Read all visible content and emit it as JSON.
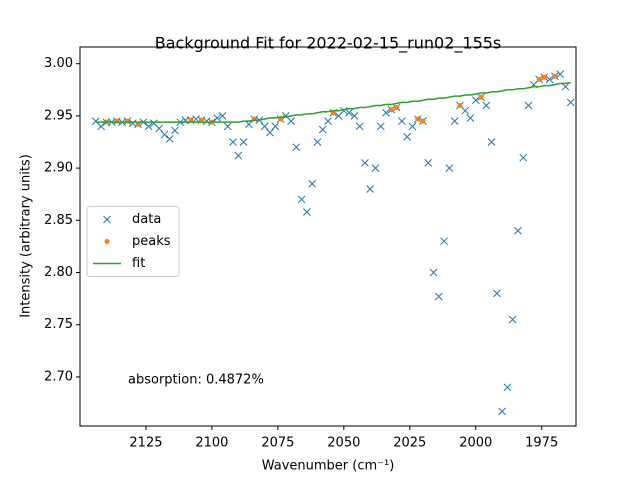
{
  "chart_data": {
    "type": "scatter-fit",
    "title": "Background Fit for 2022-02-15_run02_155s",
    "xlabel": "Wavenumber (cm⁻¹)",
    "ylabel": "Intensity (arbitrary units)",
    "annotation": "absorption: 0.4872%",
    "legend": "center left",
    "xlim": [
      2150,
      1962
    ],
    "ylim": [
      2.653,
      3.016
    ],
    "xticks": [
      2125,
      2100,
      2075,
      2050,
      2025,
      2000,
      1975
    ],
    "yticks": [
      {
        "value": 2.7,
        "label": "2.70"
      },
      {
        "value": 2.75,
        "label": "2.75"
      },
      {
        "value": 2.8,
        "label": "2.80"
      },
      {
        "value": 2.85,
        "label": "2.85"
      },
      {
        "value": 2.9,
        "label": "2.90"
      },
      {
        "value": 2.95,
        "label": "2.95"
      },
      {
        "value": 3.0,
        "label": "3.00"
      }
    ],
    "x": [
      2144,
      2142,
      2140,
      2138,
      2136,
      2134,
      2132,
      2130,
      2128,
      2126,
      2124,
      2122,
      2120,
      2118,
      2116,
      2114,
      2112,
      2110,
      2108,
      2106,
      2104,
      2102,
      2100,
      2098,
      2096,
      2094,
      2092,
      2090,
      2088,
      2086,
      2084,
      2082,
      2080,
      2078,
      2076,
      2074,
      2072,
      2070,
      2068,
      2066,
      2064,
      2062,
      2060,
      2058,
      2056,
      2054,
      2052,
      2050,
      2048,
      2046,
      2044,
      2042,
      2040,
      2038,
      2036,
      2034,
      2032,
      2030,
      2028,
      2026,
      2024,
      2022,
      2020,
      2018,
      2016,
      2014,
      2012,
      2010,
      2008,
      2006,
      2004,
      2002,
      2000,
      1998,
      1996,
      1994,
      1992,
      1990,
      1988,
      1986,
      1984,
      1982,
      1980,
      1978,
      1976,
      1974,
      1972,
      1970,
      1968,
      1966,
      1964
    ],
    "series": [
      {
        "name": "data",
        "marker": "x",
        "color": "#1f77b4",
        "values": [
          2.945,
          2.94,
          2.944,
          2.944,
          2.945,
          2.944,
          2.945,
          2.943,
          2.942,
          2.944,
          2.94,
          2.943,
          2.938,
          2.932,
          2.928,
          2.936,
          2.944,
          2.946,
          2.946,
          2.947,
          2.946,
          2.945,
          2.944,
          2.948,
          2.95,
          2.94,
          2.925,
          2.912,
          2.925,
          2.942,
          2.947,
          2.946,
          2.94,
          2.934,
          2.94,
          2.947,
          2.95,
          2.945,
          2.92,
          2.87,
          2.858,
          2.885,
          2.925,
          2.937,
          2.945,
          2.953,
          2.95,
          2.955,
          2.953,
          2.95,
          2.94,
          2.905,
          2.88,
          2.9,
          2.94,
          2.953,
          2.956,
          2.958,
          2.945,
          2.93,
          2.94,
          2.947,
          2.945,
          2.905,
          2.8,
          2.777,
          2.83,
          2.9,
          2.945,
          2.96,
          2.955,
          2.948,
          2.965,
          2.968,
          2.96,
          2.925,
          2.78,
          2.667,
          2.69,
          2.755,
          2.84,
          2.91,
          2.96,
          2.98,
          2.985,
          2.987,
          2.985,
          2.988,
          2.99,
          2.978,
          2.963
        ]
      },
      {
        "name": "peaks",
        "marker": "dot",
        "color": "#ff7f0e",
        "values": [
          null,
          null,
          2.944,
          null,
          2.945,
          null,
          2.945,
          null,
          2.942,
          null,
          null,
          null,
          null,
          null,
          null,
          null,
          null,
          null,
          2.946,
          null,
          2.946,
          null,
          2.944,
          null,
          null,
          null,
          null,
          null,
          null,
          null,
          2.947,
          null,
          null,
          null,
          null,
          2.947,
          null,
          null,
          null,
          null,
          null,
          null,
          null,
          null,
          null,
          2.953,
          null,
          null,
          null,
          null,
          null,
          null,
          null,
          null,
          null,
          null,
          2.956,
          2.958,
          null,
          null,
          null,
          2.947,
          2.945,
          null,
          null,
          null,
          null,
          null,
          null,
          2.96,
          null,
          null,
          null,
          2.968,
          null,
          null,
          null,
          null,
          null,
          null,
          null,
          null,
          null,
          null,
          2.985,
          2.987,
          null,
          2.988,
          null,
          null,
          null
        ]
      },
      {
        "name": "fit",
        "marker": "line",
        "color": "#2ca02c",
        "values": [
          2.944,
          2.944,
          2.944,
          2.944,
          2.944,
          2.944,
          2.944,
          2.944,
          2.944,
          2.944,
          2.944,
          2.944,
          2.944,
          2.944,
          2.944,
          2.944,
          2.944,
          2.944,
          2.944,
          2.944,
          2.944,
          2.944,
          2.944,
          2.944,
          2.944,
          2.944,
          2.944,
          2.944,
          2.945,
          2.945,
          2.946,
          2.946,
          2.947,
          2.948,
          2.948,
          2.949,
          2.949,
          2.95,
          2.951,
          2.951,
          2.952,
          2.952,
          2.953,
          2.954,
          2.954,
          2.955,
          2.955,
          2.956,
          2.957,
          2.957,
          2.958,
          2.958,
          2.959,
          2.96,
          2.96,
          2.961,
          2.961,
          2.962,
          2.963,
          2.963,
          2.964,
          2.964,
          2.965,
          2.966,
          2.966,
          2.967,
          2.967,
          2.968,
          2.969,
          2.969,
          2.97,
          2.97,
          2.971,
          2.972,
          2.972,
          2.973,
          2.973,
          2.974,
          2.975,
          2.975,
          2.976,
          2.976,
          2.977,
          2.978,
          2.978,
          2.979,
          2.979,
          2.98,
          2.981,
          2.981,
          2.982
        ]
      }
    ]
  }
}
